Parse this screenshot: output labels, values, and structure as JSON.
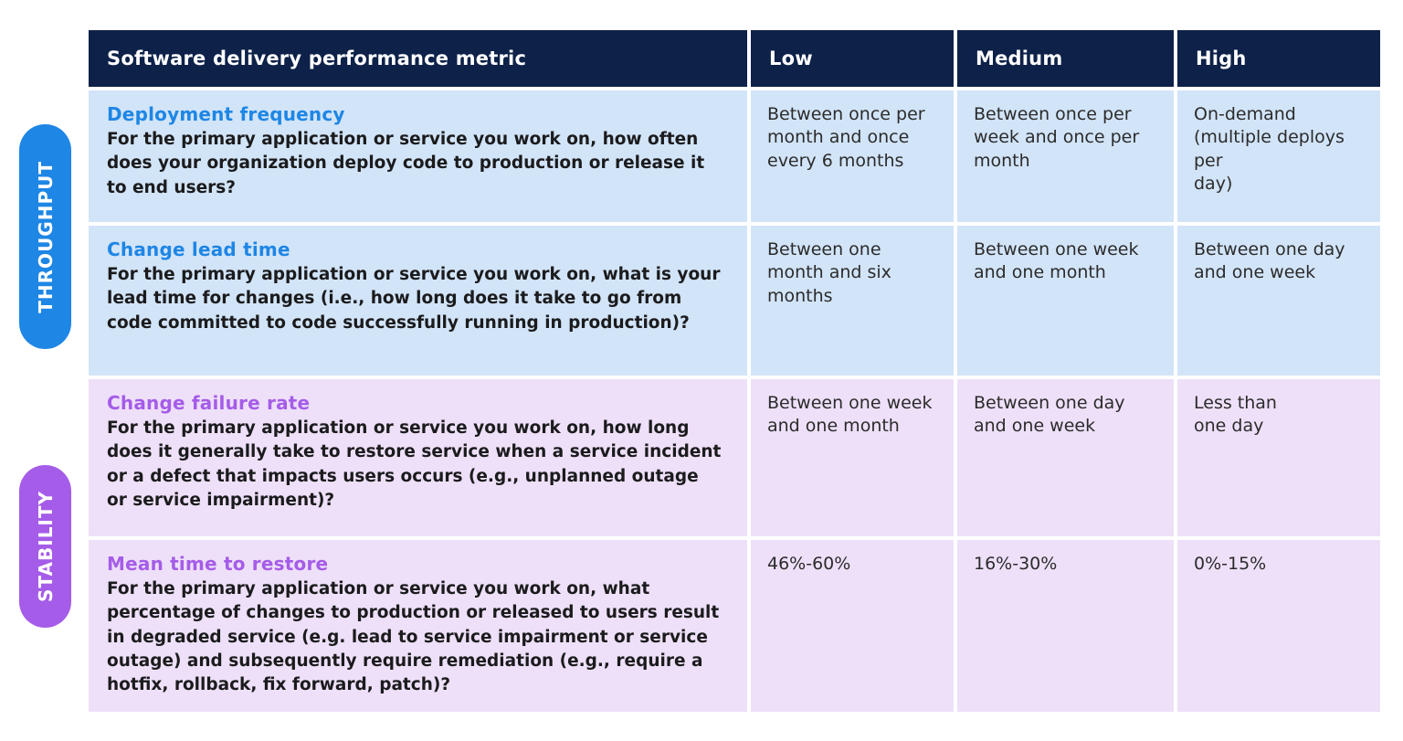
{
  "colors": {
    "header_bg": "#0d2149",
    "header_text": "#ffffff",
    "throughput_row_bg": "#d2e4f8",
    "stability_row_bg": "#eee0f8",
    "throughput_accent": "#1e86e5",
    "stability_accent": "#a55ce8",
    "body_text": "#1b1b1d",
    "value_text": "#2b2b2b"
  },
  "side_labels": [
    {
      "label": "THROUGHPUT",
      "color": "#1e86e5"
    },
    {
      "label": "STABILITY",
      "color": "#a55ce8"
    }
  ],
  "table": {
    "headers": [
      "Software delivery performance metric",
      "Low",
      "Medium",
      "High"
    ],
    "rows": [
      {
        "group": "throughput",
        "metric": "Deployment frequency",
        "description": "For the primary application or service you work on, how often does your organization deploy code to production or release it to end users?",
        "low": "Between once per month and once every 6 months",
        "medium": "Between once per week and once per month",
        "high": "On-demand (multiple deploys per\nday)"
      },
      {
        "group": "throughput",
        "metric": "Change lead time",
        "description": "For the primary application or service you work on, what is your lead time for changes (i.e., how long does it take to go from code committed to code successfully running in production)?",
        "low": "Between one month and six months",
        "medium": "Between one week and one month",
        "high": "Between one day and one week"
      },
      {
        "group": "stability",
        "metric": "Change failure rate",
        "description": "For the primary application or service you work on, how long does it generally take to restore service when a service incident or a defect that impacts users occurs (e.g., unplanned outage or service impairment)?",
        "low": "Between one week and one month",
        "medium": "Between one day and one week",
        "high": "Less than\none day"
      },
      {
        "group": "stability",
        "metric": "Mean time to restore",
        "description": "For the primary application or service you work on, what percentage of changes to production or released to users result in degraded service (e.g. lead to service impairment or service outage) and subsequently require remediation (e.g., require a hotfix, rollback, fix forward, patch)?",
        "low": "46%-60%",
        "medium": "16%-30%",
        "high": "0%-15%"
      }
    ]
  }
}
